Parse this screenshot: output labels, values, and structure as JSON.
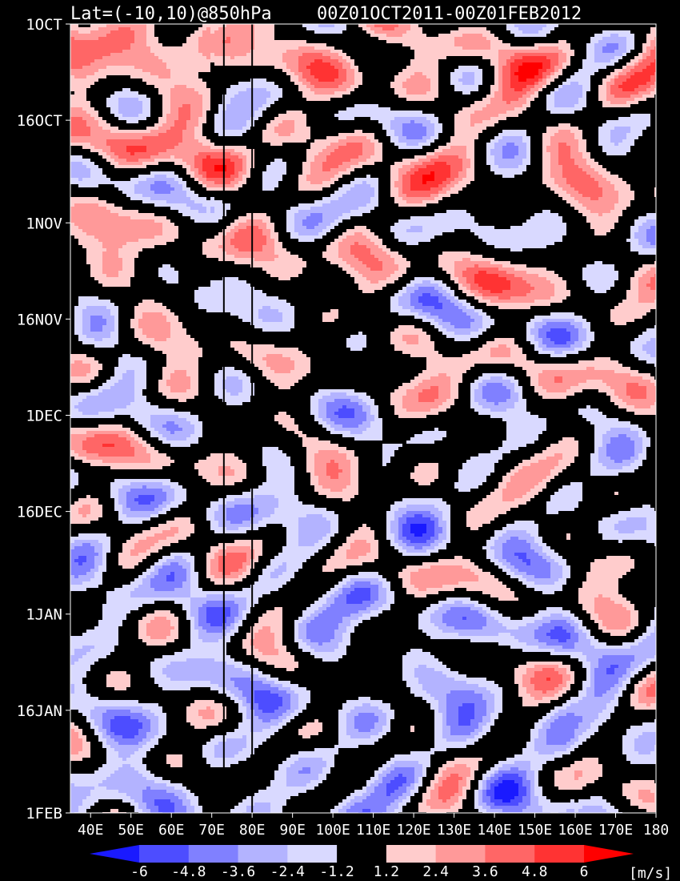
{
  "chart_data": {
    "type": "heatmap",
    "title": "Lat=(-10,10)@850hPa",
    "subtitle": "00Z01OCT2011-00Z01FEB2012",
    "x_ticks": [
      "40E",
      "50E",
      "60E",
      "70E",
      "80E",
      "90E",
      "100E",
      "110E",
      "120E",
      "130E",
      "140E",
      "150E",
      "160E",
      "170E",
      "180"
    ],
    "xlim": [
      35,
      180
    ],
    "y_ticks": [
      "1OCT",
      "16OCT",
      "1NOV",
      "16NOV",
      "1DEC",
      "16DEC",
      "1JAN",
      "16JAN",
      "1FEB"
    ],
    "y_tick_days": [
      0,
      15,
      31,
      46,
      61,
      76,
      92,
      107,
      123
    ],
    "ylim": [
      0,
      123
    ],
    "reference_lines_lon": [
      73,
      80
    ],
    "colorbar": {
      "unit": "[m/s]",
      "tick_labels": [
        "-6",
        "-4.8",
        "-3.6",
        "-2.4",
        "-1.2",
        "1.2",
        "2.4",
        "3.6",
        "4.8",
        "6"
      ],
      "levels": [
        -6,
        -4.8,
        -3.6,
        -2.4,
        -1.2,
        1.2,
        2.4,
        3.6,
        4.8,
        6
      ],
      "colors": [
        "#1a1aff",
        "#4d4dff",
        "#8080ff",
        "#b3b3ff",
        "#d9d9ff",
        "#000000",
        "#ffcccc",
        "#ff9999",
        "#ff6666",
        "#ff3333",
        "#ff0000"
      ]
    }
  }
}
